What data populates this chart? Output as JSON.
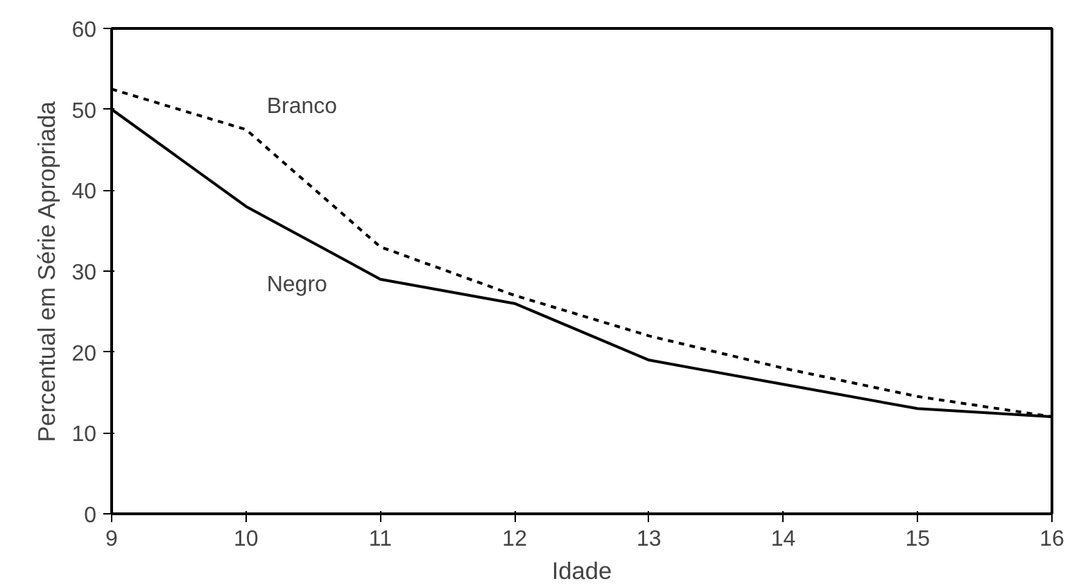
{
  "chart_data": {
    "type": "line",
    "xlabel": "Idade",
    "ylabel": "Percentual em Série Apropriada",
    "x": [
      9,
      10,
      11,
      12,
      13,
      14,
      15,
      16
    ],
    "xlim": [
      9,
      16
    ],
    "ylim": [
      0,
      60
    ],
    "xticks": [
      9,
      10,
      11,
      12,
      13,
      14,
      15,
      16
    ],
    "yticks": [
      0,
      10,
      20,
      30,
      40,
      50,
      60
    ],
    "grid": false,
    "legend": false,
    "series": [
      {
        "name": "Branco",
        "color": "#000000",
        "line_style": "dashed",
        "values": [
          52.5,
          47.5,
          33,
          27,
          22,
          18,
          14.5,
          12
        ]
      },
      {
        "name": "Negro",
        "color": "#000000",
        "line_style": "solid",
        "values": [
          50,
          38,
          29,
          26,
          19,
          16,
          13,
          12
        ]
      }
    ]
  }
}
